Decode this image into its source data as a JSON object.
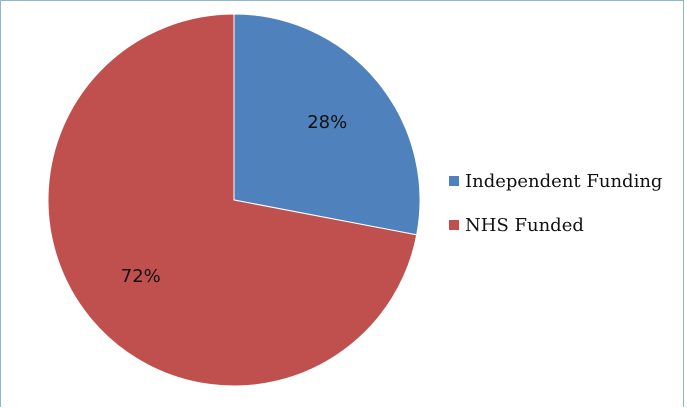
{
  "chart_data": {
    "type": "pie",
    "title": "",
    "slices": [
      {
        "label": "Independent Funding",
        "value": 28,
        "value_label": "28%",
        "color": "#4f81bd"
      },
      {
        "label": "NHS Funded",
        "value": 72,
        "value_label": "72%",
        "color": "#c0504d"
      }
    ],
    "start_angle": "12 o'clock",
    "direction": "clockwise",
    "legend_position": "right"
  },
  "legend": {
    "items": [
      {
        "label": "Independent Funding",
        "color": "#4f81bd"
      },
      {
        "label": "NHS Funded",
        "color": "#c0504d"
      }
    ]
  }
}
